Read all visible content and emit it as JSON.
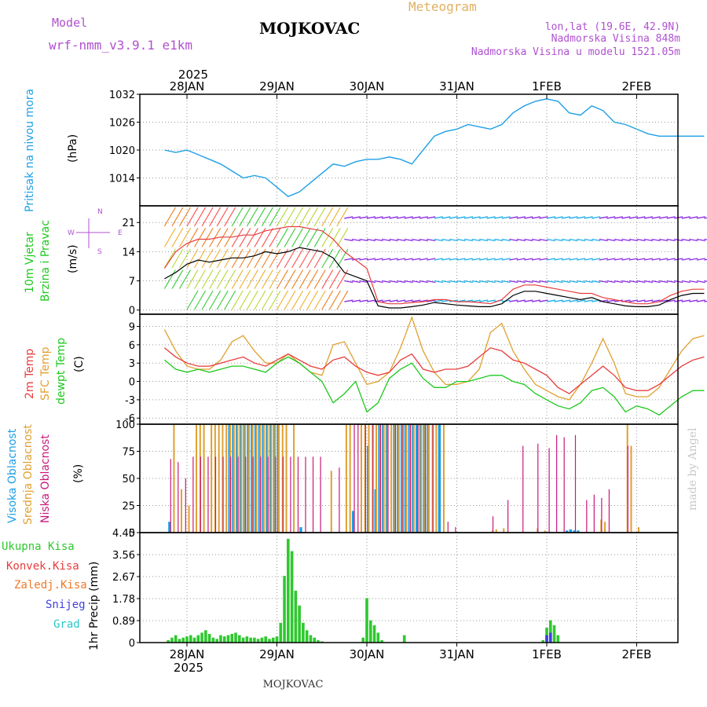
{
  "header": {
    "model_label": "Model",
    "model_value": "wrf-nmm_v3.9.1 e1km",
    "station": "MOJKOVAC",
    "meteogram": "Meteogram",
    "lonlat": "lon,lat (19.6E, 42.9N)",
    "altitude": "Nadmorska Visina 848m",
    "model_altitude": "Nadmorska Visina u modelu 1521.05m",
    "footer_station": "MOJKOVAC",
    "watermark": "made by Angel",
    "year": "2025"
  },
  "colors": {
    "pressure": "#1ea0e6",
    "temp2m": "#e83c3c",
    "sfc_temp": "#e0a030",
    "dewpt": "#1ec81e",
    "high_cloud": "#1e9ee6",
    "mid_cloud": "#e0a030",
    "low_cloud": "#c8197d",
    "total_precip": "#2ec82e",
    "conv_precip": "#e83c3c",
    "frozen_precip": "#f07828",
    "snow": "#4040e0",
    "graupel": "#28c8c8",
    "wind_slow": "#8a2be2",
    "wind_mid": "#1eaee6",
    "wind_fast": "#f09030",
    "label_purple": "#b050d0"
  },
  "time_axis": {
    "days": [
      "28JAN",
      "29JAN",
      "30JAN",
      "31JAN",
      "1FEB",
      "2FEB"
    ],
    "start_hour": -6,
    "end_hour": 138
  },
  "panels": {
    "pressure": {
      "label1": "Pritisak na nivou mora",
      "unit": "(hPa)"
    },
    "wind": {
      "label1": "10m Vjetar",
      "label2": "Brzina i Pravac",
      "unit": "(m/s)",
      "compass_n": "N",
      "compass_w": "W",
      "compass_e": "E",
      "compass_s": "S"
    },
    "temp": {
      "label1": "2m Temp",
      "label2": "SFC Temp",
      "label3": "dewpt Temp",
      "unit": "(C)"
    },
    "cloud": {
      "label1": "Visoka Oblacnost",
      "label2": "Srednja Oblacnost",
      "label3": "Niska Oblacnost",
      "unit": "(%)"
    },
    "precip": {
      "label_total": "Ukupna Kisa",
      "label_conv": "Konvek.Kisa",
      "label_frozen": "Zaledj.Kisa",
      "label_snow": "Snijeg",
      "label_graupel": "Grad",
      "unit": "1hr Precip (mm)"
    }
  },
  "chart_data": [
    {
      "type": "line",
      "title": "Pritisak na nivou mora",
      "ylabel": "(hPa)",
      "ylim": [
        1008,
        1032
      ],
      "yticks": [
        1014,
        1020,
        1026,
        1032
      ],
      "x_hours": [
        -6,
        -3,
        0,
        3,
        6,
        9,
        12,
        15,
        18,
        21,
        24,
        27,
        30,
        33,
        36,
        39,
        42,
        45,
        48,
        51,
        54,
        57,
        60,
        63,
        66,
        69,
        72,
        75,
        78,
        81,
        84,
        87,
        90,
        93,
        96,
        99,
        102,
        105,
        108,
        111,
        114,
        117,
        120,
        123,
        126,
        129,
        132,
        135,
        138
      ],
      "series": [
        {
          "name": "pressure",
          "values": [
            1020,
            1019.5,
            1020,
            1019,
            1018,
            1017,
            1015.5,
            1014,
            1014.5,
            1014,
            1012,
            1010,
            1011,
            1013,
            1015,
            1017,
            1016.5,
            1017.5,
            1018,
            1018,
            1018.5,
            1018,
            1017,
            1020,
            1023,
            1024,
            1024.5,
            1025.5,
            1025,
            1024.5,
            1025.5,
            1028,
            1029.5,
            1030.5,
            1031,
            1030.5,
            1028,
            1027.5,
            1029.5,
            1028.5,
            1026,
            1025.5,
            1024.5,
            1023.5,
            1023,
            1023,
            1023,
            1023,
            1023
          ]
        }
      ]
    },
    {
      "type": "line",
      "title": "10m Vjetar Brzina i Pravac",
      "ylabel": "(m/s)",
      "ylim": [
        -1,
        25
      ],
      "yticks": [
        0,
        7,
        14,
        21
      ],
      "x_hours": [
        -6,
        -3,
        0,
        3,
        6,
        9,
        12,
        15,
        18,
        21,
        24,
        27,
        30,
        33,
        36,
        39,
        42,
        45,
        48,
        51,
        54,
        57,
        60,
        63,
        66,
        69,
        72,
        75,
        78,
        81,
        84,
        87,
        90,
        93,
        96,
        99,
        102,
        105,
        108,
        111,
        114,
        117,
        120,
        123,
        126,
        129,
        132,
        135,
        138
      ],
      "series": [
        {
          "name": "wind_speed",
          "values": [
            7.5,
            9,
            11,
            12,
            11.5,
            12,
            12.5,
            12.5,
            13,
            14,
            13.5,
            14,
            15,
            14.5,
            14,
            12.5,
            9,
            8,
            7,
            1,
            0.5,
            0.5,
            0.8,
            1.2,
            1.8,
            1.5,
            1.2,
            1.0,
            0.8,
            0.8,
            1.5,
            3.5,
            4.5,
            4.5,
            4,
            3.5,
            3,
            2.5,
            3,
            2,
            1.5,
            1,
            0.8,
            0.8,
            1.2,
            2.5,
            3.5,
            4,
            4
          ]
        },
        {
          "name": "wind_gust",
          "values": [
            10,
            14,
            16,
            17,
            17,
            17.5,
            17.5,
            18,
            18,
            19,
            19.5,
            20,
            20,
            19.5,
            19,
            17,
            14,
            12,
            10,
            2,
            1.5,
            1.5,
            1.8,
            2,
            2.5,
            2.5,
            2,
            2,
            1.8,
            1.5,
            2.5,
            5,
            6,
            6,
            5.5,
            5,
            4.5,
            4,
            4,
            3,
            2.5,
            2,
            1.5,
            1.5,
            2,
            3.5,
            4.5,
            5,
            5
          ]
        }
      ]
    },
    {
      "type": "line",
      "title": "Temperature",
      "ylabel": "(C)",
      "ylim": [
        -7,
        11
      ],
      "yticks": [
        -6,
        -3,
        0,
        3,
        6,
        9
      ],
      "x_hours": [
        -6,
        -3,
        0,
        3,
        6,
        9,
        12,
        15,
        18,
        21,
        24,
        27,
        30,
        33,
        36,
        39,
        42,
        45,
        48,
        51,
        54,
        57,
        60,
        63,
        66,
        69,
        72,
        75,
        78,
        81,
        84,
        87,
        90,
        93,
        96,
        99,
        102,
        105,
        108,
        111,
        114,
        117,
        120,
        123,
        126,
        129,
        132,
        135,
        138
      ],
      "series": [
        {
          "name": "2m Temp",
          "values": [
            5.5,
            4,
            3,
            2.5,
            2.5,
            3,
            3.5,
            4,
            3,
            2.5,
            3.5,
            4.5,
            3.5,
            2.5,
            2,
            3.5,
            4,
            2.5,
            1.5,
            1,
            1.5,
            3.5,
            4.5,
            2,
            1.5,
            2,
            2,
            2.5,
            4,
            5.5,
            5,
            3.5,
            3,
            2,
            1,
            -1,
            -2,
            -0.5,
            1,
            2.5,
            1,
            -1,
            -1.5,
            -1.5,
            -0.5,
            1,
            2.5,
            3.5,
            4
          ]
        },
        {
          "name": "SFC Temp",
          "values": [
            8.5,
            5,
            2.5,
            2,
            2,
            3.5,
            6.5,
            7.5,
            5,
            3,
            3,
            4.5,
            3,
            1.5,
            1,
            6,
            6.5,
            3,
            -0.5,
            0,
            1.5,
            5.5,
            10.5,
            5,
            1.5,
            -0.5,
            -0.5,
            0,
            2,
            8,
            9.5,
            5,
            2,
            -0.5,
            -1.5,
            -2.5,
            -3,
            -0.5,
            3,
            7,
            3,
            -2,
            -2.5,
            -2.5,
            -1,
            2,
            5,
            7,
            7.5
          ]
        },
        {
          "name": "dewpt Temp",
          "values": [
            3.5,
            2,
            1.5,
            2,
            1.5,
            2,
            2.5,
            2.5,
            2,
            1.5,
            3,
            4,
            3,
            1.5,
            0,
            -3.5,
            -2,
            0,
            -5,
            -3.5,
            0.5,
            2,
            3,
            0.5,
            -1,
            -1,
            0,
            0,
            0.5,
            1,
            1,
            0,
            -0.5,
            -2,
            -3,
            -4,
            -4.5,
            -3.5,
            -1.5,
            -1,
            -2.5,
            -5,
            -4,
            -4.5,
            -5.5,
            -4,
            -2.5,
            -1.5,
            -1.5
          ]
        }
      ]
    },
    {
      "type": "bar",
      "title": "Oblacnost",
      "ylabel": "(%)",
      "ylim": [
        0,
        100
      ],
      "yticks": [
        0,
        25,
        50,
        75,
        100
      ],
      "series": [
        {
          "name": "Visoka Oblacnost",
          "x_hours": [
            -5,
            11,
            12,
            13,
            14,
            15,
            16,
            17,
            18,
            19,
            20,
            21,
            22,
            23,
            24,
            30,
            44,
            48,
            50,
            51,
            52,
            53,
            55,
            56,
            57,
            58,
            59,
            60,
            61,
            62,
            63,
            64,
            67,
            101,
            102,
            103,
            104
          ],
          "values": [
            10,
            100,
            100,
            100,
            100,
            100,
            100,
            100,
            100,
            100,
            100,
            100,
            100,
            100,
            100,
            5,
            20,
            80,
            40,
            100,
            100,
            100,
            100,
            100,
            100,
            100,
            100,
            100,
            100,
            100,
            100,
            100,
            100,
            2,
            3,
            2,
            2
          ]
        },
        {
          "name": "Srednja Oblacnost",
          "x_hours": [
            -4,
            -2,
            0,
            2,
            3,
            4,
            6,
            7,
            8,
            9,
            10,
            11,
            12,
            13,
            14,
            15,
            16,
            17,
            18,
            19,
            20,
            21,
            22,
            23,
            24,
            25,
            26,
            28,
            38,
            42,
            43,
            46,
            47,
            48,
            49,
            50,
            51,
            52,
            53,
            54,
            55,
            56,
            57,
            58,
            59,
            60,
            62,
            63,
            64,
            65,
            66,
            68,
            81,
            82,
            84,
            93,
            95,
            110,
            111,
            117,
            118,
            120
          ],
          "values": [
            100,
            40,
            25,
            100,
            100,
            100,
            100,
            100,
            100,
            100,
            100,
            100,
            100,
            100,
            100,
            100,
            100,
            100,
            100,
            100,
            100,
            100,
            100,
            100,
            100,
            100,
            100,
            100,
            57,
            100,
            100,
            100,
            100,
            100,
            100,
            100,
            100,
            100,
            100,
            100,
            100,
            100,
            100,
            100,
            100,
            100,
            100,
            100,
            100,
            100,
            100,
            100,
            2,
            3,
            4,
            4,
            2,
            12,
            10,
            100,
            80,
            5
          ]
        },
        {
          "name": "Niska Oblacnost",
          "x_hours": [
            -5,
            -3,
            -1,
            1,
            3,
            5,
            7,
            9,
            11,
            13,
            15,
            17,
            19,
            21,
            23,
            25,
            27,
            29,
            31,
            33,
            35,
            40,
            44,
            45,
            47,
            49,
            51,
            53,
            55,
            57,
            59,
            61,
            63,
            65,
            69,
            71,
            81,
            85,
            89,
            93,
            96,
            98,
            100,
            103,
            106,
            108,
            110,
            112,
            117
          ],
          "values": [
            68,
            65,
            50,
            70,
            70,
            70,
            70,
            70,
            70,
            70,
            70,
            70,
            70,
            70,
            70,
            70,
            70,
            70,
            70,
            70,
            70,
            60,
            100,
            100,
            100,
            100,
            100,
            100,
            100,
            100,
            100,
            100,
            100,
            100,
            10,
            5,
            15,
            30,
            80,
            82,
            78,
            90,
            88,
            90,
            30,
            35,
            32,
            40,
            80
          ]
        }
      ]
    },
    {
      "type": "bar",
      "title": "1hr Precip",
      "ylabel": "1hr Precip (mm)",
      "ylim": [
        0,
        4.45
      ],
      "yticks": [
        0,
        0.89,
        1.78,
        2.67,
        3.56,
        4.45
      ],
      "series": [
        {
          "name": "Ukupna Kisa",
          "x_hours": [
            -5,
            -4,
            -3,
            -2,
            -1,
            0,
            1,
            2,
            3,
            4,
            5,
            6,
            7,
            8,
            9,
            10,
            11,
            12,
            13,
            14,
            15,
            16,
            17,
            18,
            19,
            20,
            21,
            22,
            23,
            24,
            25,
            26,
            27,
            28,
            29,
            30,
            31,
            32,
            33,
            34,
            35,
            36,
            47,
            48,
            49,
            50,
            51,
            52,
            58,
            95,
            96,
            97,
            98,
            99
          ],
          "values": [
            0.1,
            0.2,
            0.3,
            0.15,
            0.2,
            0.25,
            0.3,
            0.2,
            0.3,
            0.4,
            0.5,
            0.35,
            0.2,
            0.15,
            0.3,
            0.25,
            0.3,
            0.35,
            0.4,
            0.3,
            0.2,
            0.25,
            0.2,
            0.2,
            0.15,
            0.2,
            0.25,
            0.15,
            0.2,
            0.25,
            0.8,
            2.7,
            4.2,
            3.7,
            2.1,
            1.5,
            0.8,
            0.5,
            0.3,
            0.2,
            0.1,
            0.05,
            0.2,
            1.8,
            0.9,
            0.7,
            0.4,
            0.1,
            0.3,
            0.1,
            0.6,
            0.9,
            0.7,
            0.3
          ]
        },
        {
          "name": "Snijeg",
          "x_hours": [
            96,
            97
          ],
          "values": [
            0.3,
            0.4
          ]
        }
      ]
    }
  ]
}
